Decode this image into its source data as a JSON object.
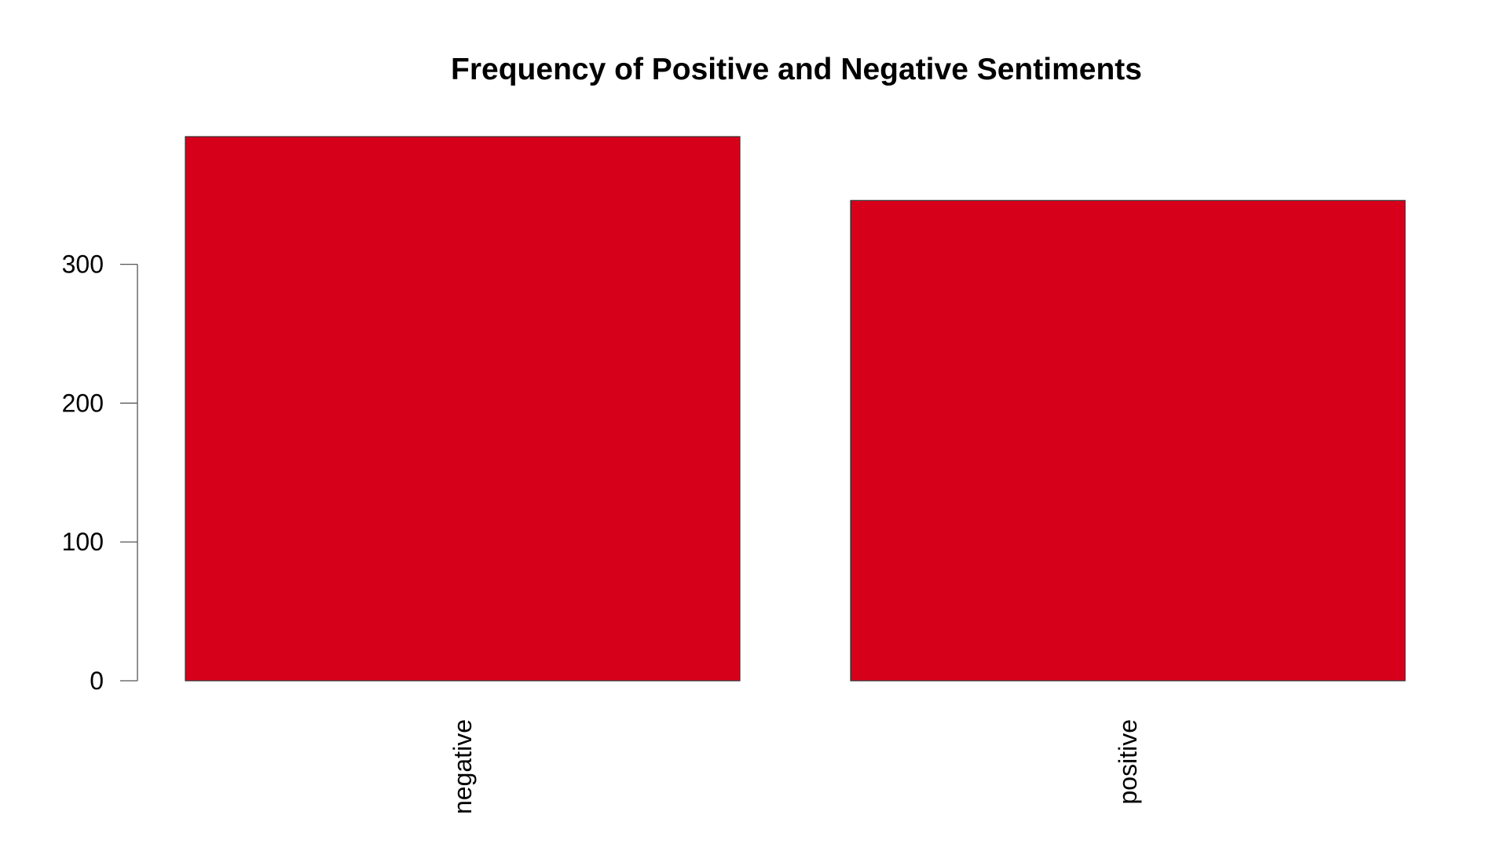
{
  "chart_data": {
    "type": "bar",
    "title": "Frequency of Positive and Negative Sentiments",
    "xlabel": "",
    "ylabel": "",
    "categories": [
      "negative",
      "positive"
    ],
    "values": [
      392,
      346
    ],
    "ylim": [
      0,
      392
    ],
    "yticks": [
      0,
      100,
      200,
      300
    ],
    "bar_color": "#d7001b",
    "grid": false,
    "legend": "none"
  }
}
